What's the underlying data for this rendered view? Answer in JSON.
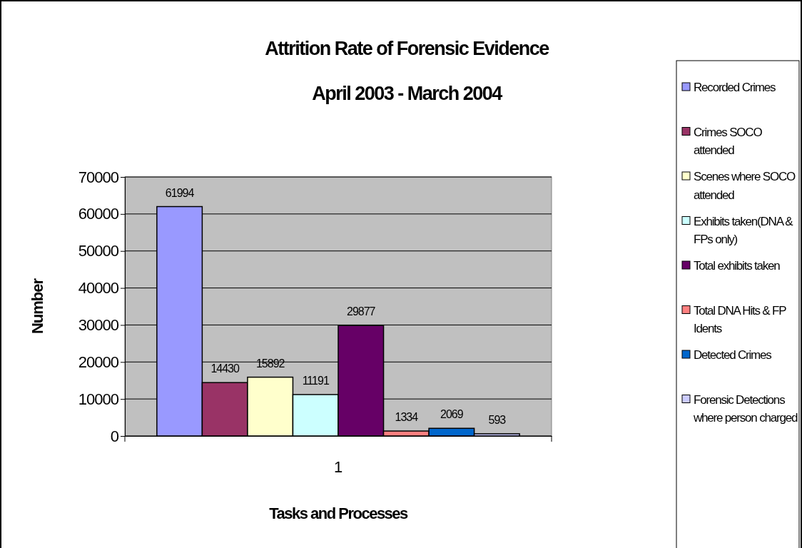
{
  "chart_data": {
    "type": "bar",
    "title": "Attrition Rate of Forensic Evidence",
    "subtitle": "April 2003 - March 2004",
    "xlabel": "Tasks and Processes",
    "ylabel": "Number",
    "categories": [
      "1"
    ],
    "series": [
      {
        "name": "Recorded Crimes",
        "color": "#9999ff",
        "values": [
          61994
        ]
      },
      {
        "name": "Crimes SOCO attended",
        "color": "#993366",
        "values": [
          14430
        ]
      },
      {
        "name": "Scenes where SOCO attended",
        "color": "#ffffcc",
        "values": [
          15892
        ]
      },
      {
        "name": "Exhibits taken(DNA & FPs only)",
        "color": "#ccffff",
        "values": [
          11191
        ]
      },
      {
        "name": "Total exhibits taken",
        "color": "#660066",
        "values": [
          29877
        ]
      },
      {
        "name": "Total DNA Hits & FP Idents",
        "color": "#ff8080",
        "values": [
          1334
        ]
      },
      {
        "name": "Detected Crimes",
        "color": "#0066cc",
        "values": [
          2069
        ]
      },
      {
        "name": "Forensic Detections where person charged",
        "color": "#ccccff",
        "values": [
          593
        ]
      }
    ],
    "ylim": [
      0,
      70000
    ],
    "yticks": [
      0,
      10000,
      20000,
      30000,
      40000,
      50000,
      60000,
      70000
    ],
    "grid": "y",
    "legend": "right",
    "data_labels": true
  }
}
